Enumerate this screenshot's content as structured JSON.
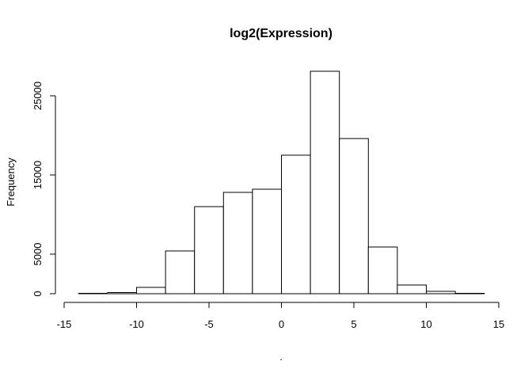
{
  "chart_data": {
    "type": "bar",
    "title": "log2(Expression)",
    "xlabel": ".",
    "ylabel": "Frequency",
    "xlim": [
      -15,
      15
    ],
    "ylim": [
      0,
      28000
    ],
    "x_ticks": [
      -15,
      -10,
      -5,
      0,
      5,
      10,
      15
    ],
    "y_ticks": [
      0,
      5000,
      15000,
      25000
    ],
    "bins": [
      {
        "start": -14,
        "end": -12,
        "value": 50
      },
      {
        "start": -12,
        "end": -10,
        "value": 150
      },
      {
        "start": -10,
        "end": -8,
        "value": 800
      },
      {
        "start": -8,
        "end": -6,
        "value": 5400
      },
      {
        "start": -6,
        "end": -4,
        "value": 11000
      },
      {
        "start": -4,
        "end": -2,
        "value": 12800
      },
      {
        "start": -2,
        "end": 0,
        "value": 13200
      },
      {
        "start": 0,
        "end": 2,
        "value": 17500
      },
      {
        "start": 2,
        "end": 4,
        "value": 28100
      },
      {
        "start": 4,
        "end": 6,
        "value": 19600
      },
      {
        "start": 6,
        "end": 8,
        "value": 5900
      },
      {
        "start": 8,
        "end": 10,
        "value": 1100
      },
      {
        "start": 10,
        "end": 12,
        "value": 300
      },
      {
        "start": 12,
        "end": 14,
        "value": 50
      }
    ],
    "grid": false,
    "legend": "none"
  }
}
